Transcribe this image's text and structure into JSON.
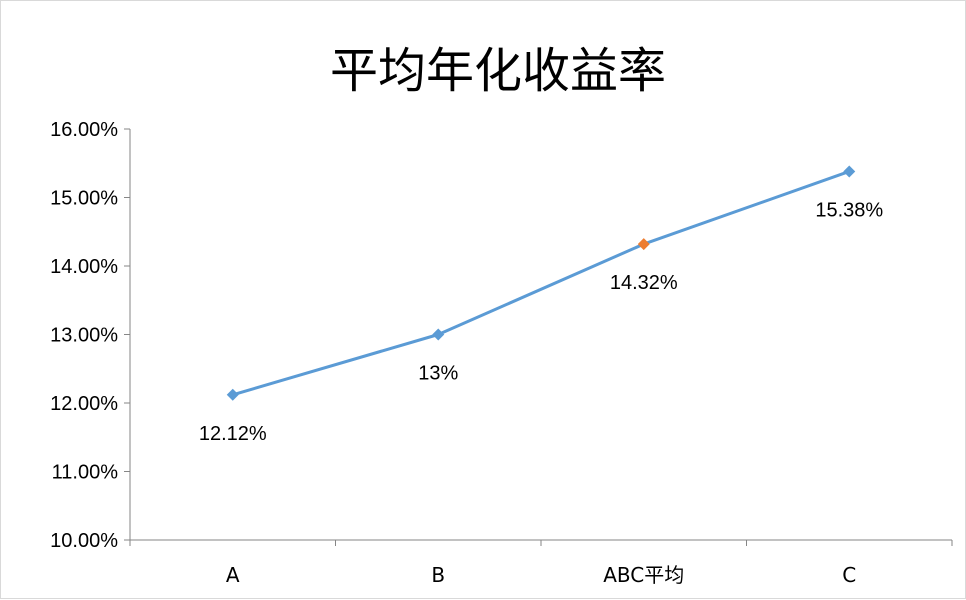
{
  "chart_data": {
    "type": "line",
    "title": "平均年化收益率",
    "categories": [
      "A",
      "B",
      "ABC平均",
      "C"
    ],
    "values": [
      12.12,
      13.0,
      14.32,
      15.38
    ],
    "data_labels": [
      "12.12%",
      "13%",
      "14.32%",
      "15.38%"
    ],
    "ylim": [
      10,
      16
    ],
    "yticks": [
      10,
      11,
      12,
      13,
      14,
      15,
      16
    ],
    "ytick_labels": [
      "10.00%",
      "11.00%",
      "12.00%",
      "13.00%",
      "14.00%",
      "15.00%",
      "16.00%"
    ],
    "grid": false,
    "legend": "none",
    "colors": {
      "line": "#5b9bd5",
      "marker": "#5b9bd5",
      "highlight_marker": "#ed7d31",
      "axis": "#868686"
    },
    "highlight_index": 2
  }
}
